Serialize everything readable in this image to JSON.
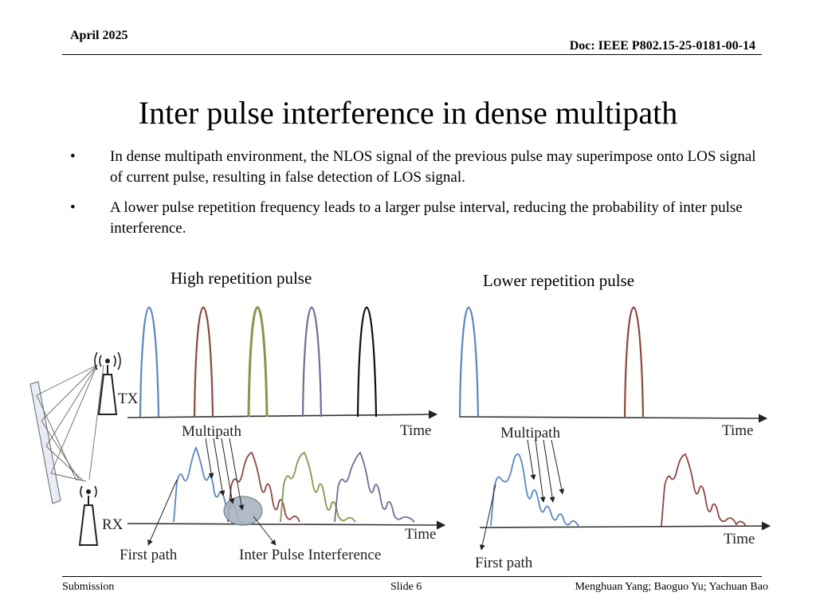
{
  "header": {
    "date": "April 2025",
    "doc_id": "Doc: IEEE P802.15-25-0181-00-14"
  },
  "title": "Inter pulse interference in dense multipath",
  "bullets": [
    "In dense multipath environment, the NLOS signal of the previous pulse may superimpose onto LOS signal of current pulse, resulting in false detection of  LOS signal.",
    "A lower pulse repetition frequency leads to a larger pulse interval, reducing the probability of inter pulse interference."
  ],
  "bullet_symbol": "•",
  "figure": {
    "left_title": "High repetition pulse",
    "right_title": "Lower repetition pulse",
    "tx_label": "TX",
    "rx_label": "RX",
    "time_label": "Time",
    "multipath_label": "Multipath",
    "first_path_label": "First path",
    "ipi_label": "Inter Pulse Interference",
    "colors": {
      "blue": "#5b86c0",
      "red": "#8e4640",
      "green": "#7f9a4c",
      "purple": "#756b95",
      "black": "#111111",
      "ellipse": "#a9b3c1"
    }
  },
  "footer": {
    "left": "Submission",
    "center": "Slide 6",
    "right": "Menghuan Yang; Baoguo Yu; Yachuan Bao"
  }
}
